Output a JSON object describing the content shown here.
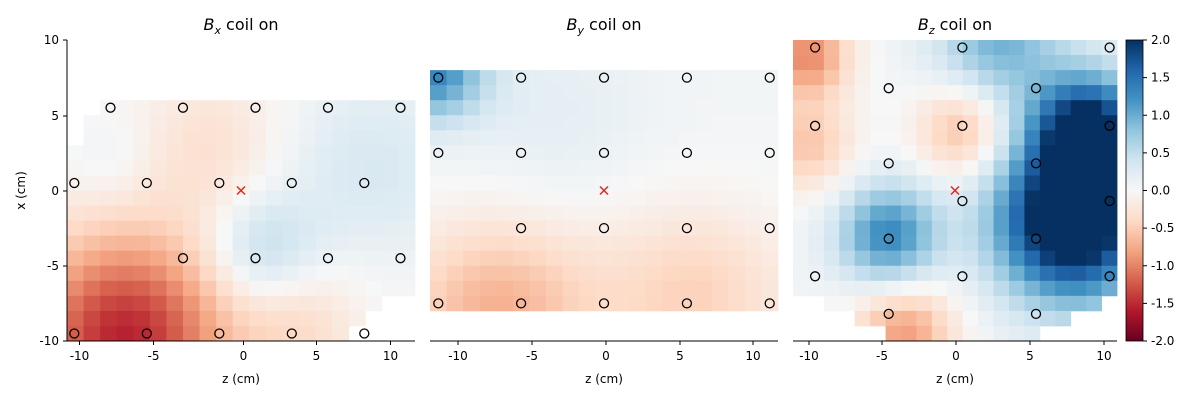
{
  "chart_data": [
    {
      "type": "heatmap",
      "title": "B_x coil on",
      "title_parts": {
        "var": "B",
        "sub": "x",
        "rest": " coil on"
      },
      "xlabel": "z (cm)",
      "ylabel": "x (cm)",
      "xlim": [
        -12,
        12
      ],
      "ylim": [
        -10,
        10
      ],
      "xticks": [
        "-10",
        "-5",
        "0",
        "5",
        "10"
      ],
      "yticks": [
        "-10",
        "-5",
        "0",
        "5",
        "10"
      ],
      "sensor_marker": "o",
      "origin_marker": {
        "z": 0,
        "x": 0,
        "symbol": "x",
        "color": "#e8261c"
      },
      "sensors": [
        {
          "z": -9,
          "x": 5.5
        },
        {
          "z": -4,
          "x": 5.5
        },
        {
          "z": 1,
          "x": 5.5
        },
        {
          "z": 6,
          "x": 5.5
        },
        {
          "z": 11,
          "x": 5.5
        },
        {
          "z": -11.5,
          "x": 0.5
        },
        {
          "z": -6.5,
          "x": 0.5
        },
        {
          "z": -1.5,
          "x": 0.5
        },
        {
          "z": 3.5,
          "x": 0.5
        },
        {
          "z": 8.5,
          "x": 0.5
        },
        {
          "z": -4,
          "x": -4.5
        },
        {
          "z": 1,
          "x": -4.5
        },
        {
          "z": 6,
          "x": -4.5
        },
        {
          "z": 11,
          "x": -4.5
        },
        {
          "z": -11.5,
          "x": -9.5
        },
        {
          "z": -6.5,
          "x": -9.5
        },
        {
          "z": -1.5,
          "x": -9.5
        },
        {
          "z": 3.5,
          "x": -9.5
        },
        {
          "z": 8.5,
          "x": -9.5
        }
      ]
    },
    {
      "type": "heatmap",
      "title": "B_y coil on",
      "title_parts": {
        "var": "B",
        "sub": "y",
        "rest": " coil on"
      },
      "xlabel": "z (cm)",
      "ylabel": "",
      "xlim": [
        -10.5,
        10.5
      ],
      "ylim": [
        -10,
        10
      ],
      "xticks": [
        "-10",
        "-5",
        "0",
        "5",
        "10"
      ],
      "yticks": [],
      "sensor_marker": "o",
      "origin_marker": {
        "z": 0,
        "x": 0,
        "symbol": "x",
        "color": "#e8261c"
      },
      "sensors": [
        {
          "z": -10,
          "x": 7.5
        },
        {
          "z": -5,
          "x": 7.5
        },
        {
          "z": 0,
          "x": 7.5
        },
        {
          "z": 5,
          "x": 7.5
        },
        {
          "z": 10,
          "x": 7.5
        },
        {
          "z": -10,
          "x": 2.5
        },
        {
          "z": -5,
          "x": 2.5
        },
        {
          "z": 0,
          "x": 2.5
        },
        {
          "z": 5,
          "x": 2.5
        },
        {
          "z": 10,
          "x": 2.5
        },
        {
          "z": -5,
          "x": -2.5
        },
        {
          "z": 0,
          "x": -2.5
        },
        {
          "z": 5,
          "x": -2.5
        },
        {
          "z": 10,
          "x": -2.5
        },
        {
          "z": -10,
          "x": -7.5
        },
        {
          "z": -5,
          "x": -7.5
        },
        {
          "z": 0,
          "x": -7.5
        },
        {
          "z": 5,
          "x": -7.5
        },
        {
          "z": 10,
          "x": -7.5
        }
      ]
    },
    {
      "type": "heatmap",
      "title": "B_z coil on",
      "title_parts": {
        "var": "B",
        "sub": "z",
        "rest": " coil on"
      },
      "xlabel": "z (cm)",
      "ylabel": "",
      "xlim": [
        -11,
        11
      ],
      "ylim": [
        -10,
        10
      ],
      "xticks": [
        "-10",
        "-5",
        "0",
        "5",
        "10"
      ],
      "yticks": [],
      "sensor_marker": "o",
      "origin_marker": {
        "z": 0,
        "x": 0,
        "symbol": "x",
        "color": "#e8261c"
      },
      "sensors": [
        {
          "z": -9.5,
          "x": 9.5
        },
        {
          "z": 0.5,
          "x": 9.5
        },
        {
          "z": 10.5,
          "x": 9.5
        },
        {
          "z": -4.5,
          "x": 6.8
        },
        {
          "z": 5.5,
          "x": 6.8
        },
        {
          "z": -9.5,
          "x": 4.3
        },
        {
          "z": 0.5,
          "x": 4.3
        },
        {
          "z": 10.5,
          "x": 4.3
        },
        {
          "z": -4.5,
          "x": 1.8
        },
        {
          "z": 5.5,
          "x": 1.8
        },
        {
          "z": 0.5,
          "x": -0.7
        },
        {
          "z": 10.5,
          "x": -0.7
        },
        {
          "z": -4.5,
          "x": -3.2
        },
        {
          "z": 5.5,
          "x": -3.2
        },
        {
          "z": -9.5,
          "x": -5.7
        },
        {
          "z": 0.5,
          "x": -5.7
        },
        {
          "z": 10.5,
          "x": -5.7
        },
        {
          "z": -4.5,
          "x": -8.2
        },
        {
          "z": 5.5,
          "x": -8.2
        }
      ]
    }
  ],
  "colorbar": {
    "colormap": "RdBu",
    "vmin": -2.0,
    "vmax": 2.0,
    "ticks": [
      "2.0",
      "1.5",
      "1.0",
      "0.5",
      "0.0",
      "-0.5",
      "-1.0",
      "-1.5",
      "-2.0"
    ],
    "colors": {
      "low": "#67001f",
      "mid": "#f7f7f7",
      "high": "#053061"
    }
  }
}
